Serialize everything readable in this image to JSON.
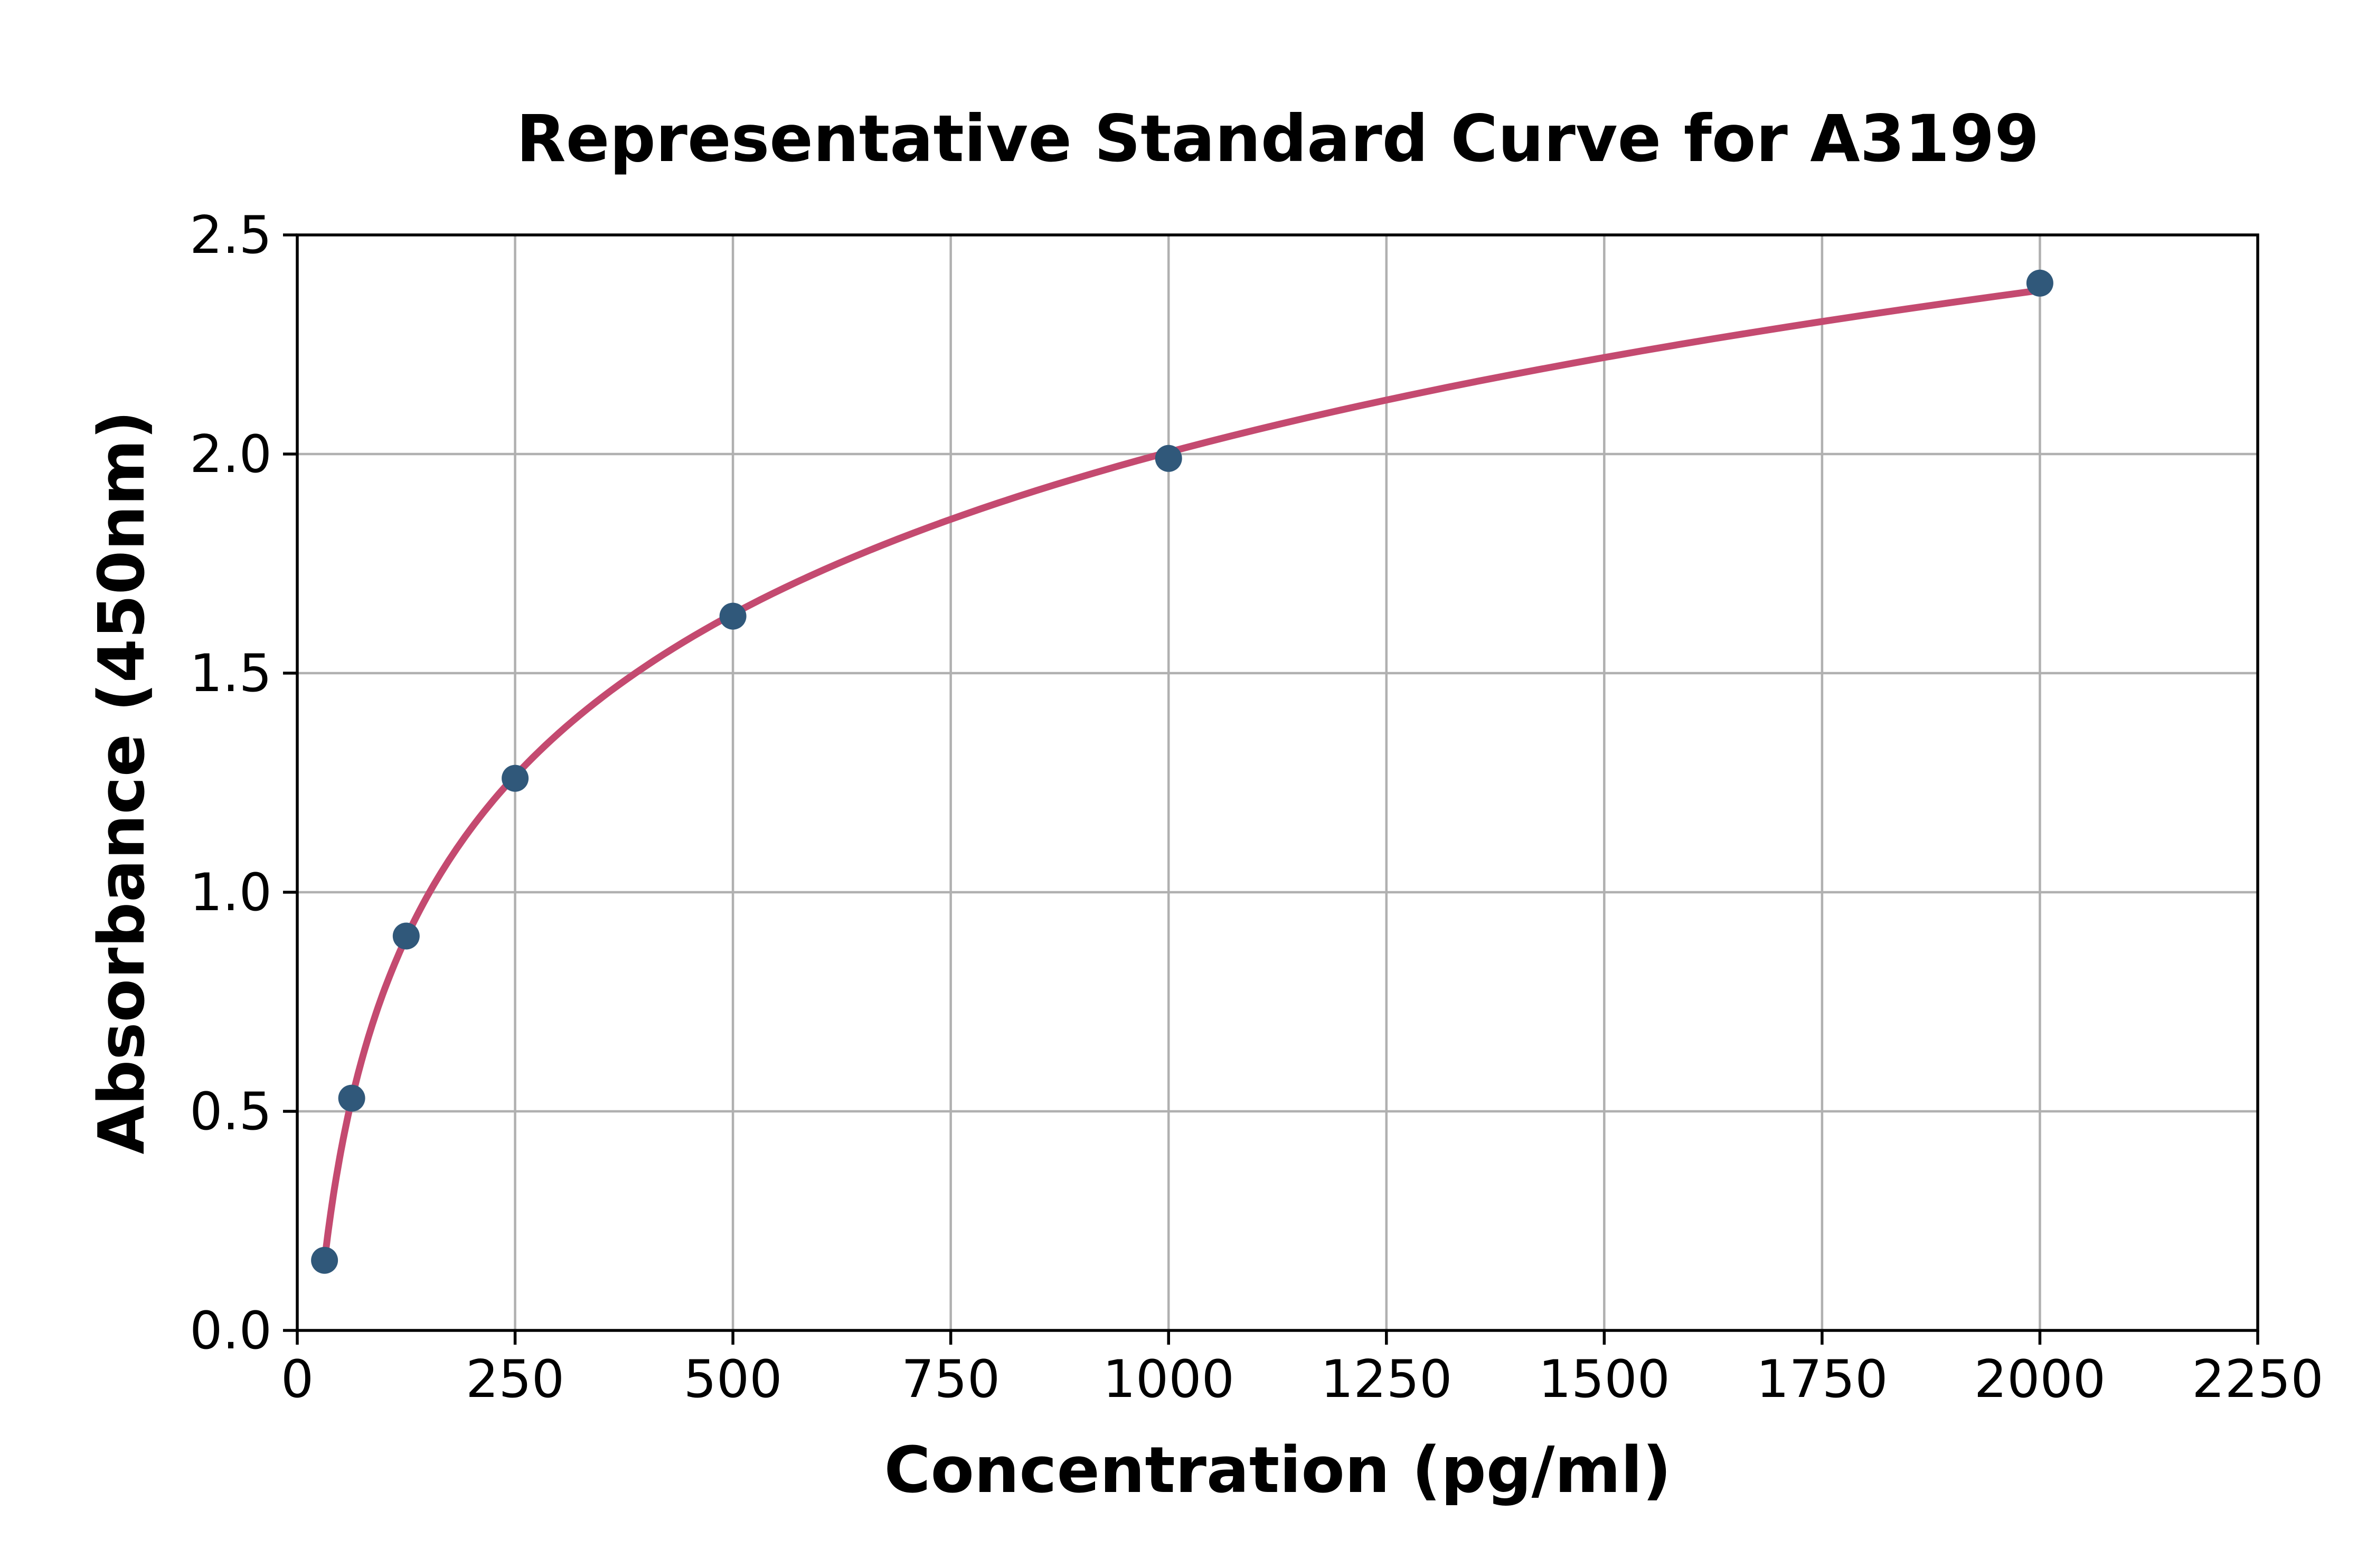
{
  "figure": {
    "background": "#ffffff"
  },
  "chart_data": {
    "type": "line",
    "title": "Representative Standard Curve for A3199",
    "xlabel": "Concentration (pg/ml)",
    "ylabel": "Absorbance (450nm)",
    "series": [
      {
        "name": "standard-curve",
        "x": [
          31.25,
          62.5,
          125,
          250,
          500,
          1000,
          2000
        ],
        "y": [
          0.16,
          0.53,
          0.9,
          1.26,
          1.63,
          1.99,
          2.39
        ],
        "fit": "logarithmic",
        "line_color": "#c44a70",
        "marker_color": "#30587a",
        "marker_shape": "circle"
      }
    ],
    "xlim": [
      0,
      2250
    ],
    "ylim": [
      0,
      2.5
    ],
    "x_ticks": {
      "values": [
        0,
        250,
        500,
        750,
        1000,
        1250,
        1500,
        1750,
        2000,
        2250
      ],
      "labels": [
        "0",
        "250",
        "500",
        "750",
        "1000",
        "1250",
        "1500",
        "1750",
        "2000",
        "2250"
      ]
    },
    "y_ticks": {
      "values": [
        0,
        0.5,
        1.0,
        1.5,
        2.0,
        2.5
      ],
      "labels": [
        "0.0",
        "0.5",
        "1.0",
        "1.5",
        "2.0",
        "2.5"
      ]
    },
    "grid": true,
    "grid_color": "#b0b0b0",
    "spine_color": "#000000",
    "legend": false
  }
}
